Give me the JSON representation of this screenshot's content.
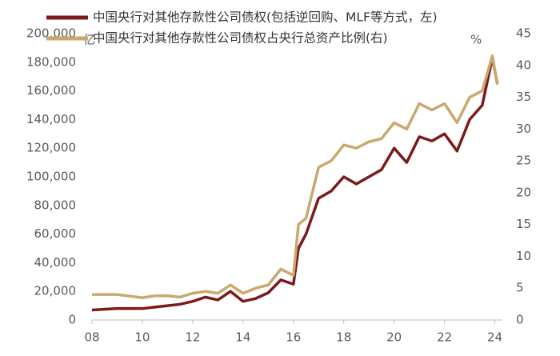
{
  "chart_data": {
    "type": "line",
    "legend_position": "upper left",
    "annotations": [
      "亿",
      "%"
    ],
    "series": [
      {
        "name": "中国央行对其他存款性公司债权(包括逆回购、MLF等方式，左)",
        "color": "#7b1a1a",
        "axis": "y",
        "x": [
          2008,
          2009,
          2010,
          2010.5,
          2011,
          2011.5,
          2012,
          2012.5,
          2013,
          2013.5,
          2014,
          2014.5,
          2015,
          2015.5,
          2016,
          2016.2,
          2016.5,
          2017,
          2017.5,
          2018,
          2018.5,
          2019,
          2019.5,
          2020,
          2020.5,
          2021,
          2021.5,
          2022,
          2022.5,
          2023,
          2023.5,
          2023.9,
          2024.1
        ],
        "values": [
          7000,
          8000,
          8000,
          9000,
          10000,
          11000,
          13000,
          16000,
          14000,
          20000,
          13000,
          15000,
          19000,
          28000,
          25000,
          50000,
          60000,
          85000,
          90000,
          100000,
          95000,
          100000,
          105000,
          120000,
          110000,
          128000,
          125000,
          130000,
          118000,
          140000,
          150000,
          183000,
          165000
        ]
      },
      {
        "name": "中国央行对其他存款性公司债权占央行总资产比例(右)",
        "color": "#c8a96e",
        "axis": "y2",
        "x": [
          2008,
          2009,
          2010,
          2010.5,
          2011,
          2011.5,
          2012,
          2012.5,
          2013,
          2013.5,
          2014,
          2014.5,
          2015,
          2015.5,
          2016,
          2016.2,
          2016.5,
          2017,
          2017.5,
          2018,
          2018.5,
          2019,
          2019.5,
          2020,
          2020.5,
          2021,
          2021.5,
          2022,
          2022.5,
          2023,
          2023.5,
          2023.9,
          2024.1
        ],
        "values": [
          4,
          4,
          3.5,
          3.8,
          3.8,
          3.6,
          4.2,
          4.5,
          4.2,
          5.5,
          4.2,
          5,
          5.5,
          8,
          7,
          15,
          16,
          24,
          25,
          27.5,
          27,
          28,
          28.5,
          31,
          30,
          34,
          33,
          34,
          31,
          35,
          36,
          41.5,
          37
        ]
      }
    ],
    "xlim": [
      2008,
      2024.3
    ],
    "xticks": [
      {
        "value": 2008,
        "label": "08"
      },
      {
        "value": 2010,
        "label": "10"
      },
      {
        "value": 2012,
        "label": "12"
      },
      {
        "value": 2014,
        "label": "14"
      },
      {
        "value": 2016,
        "label": "16"
      },
      {
        "value": 2018,
        "label": "18"
      },
      {
        "value": 2020,
        "label": "20"
      },
      {
        "value": 2022,
        "label": "22"
      },
      {
        "value": 2024,
        "label": "24"
      }
    ],
    "ylim": [
      0,
      200000
    ],
    "yticks": [
      0,
      {
        "value": 20000,
        "label": "20,000"
      },
      {
        "value": 40000,
        "label": "40,000"
      },
      {
        "value": 60000,
        "label": "60,000"
      },
      {
        "value": 80000,
        "label": "80,000"
      },
      {
        "value": 100000,
        "label": "100,000"
      },
      {
        "value": 120000,
        "label": "120,000"
      },
      {
        "value": 140000,
        "label": "140,000"
      },
      {
        "value": 160000,
        "label": "160,000"
      },
      {
        "value": 180000,
        "label": "180,000"
      },
      {
        "value": 200000,
        "label": "200,000"
      }
    ],
    "y2lim": [
      0,
      45
    ],
    "y2ticks": [
      0,
      5,
      10,
      15,
      20,
      25,
      30,
      35,
      40,
      45
    ]
  }
}
